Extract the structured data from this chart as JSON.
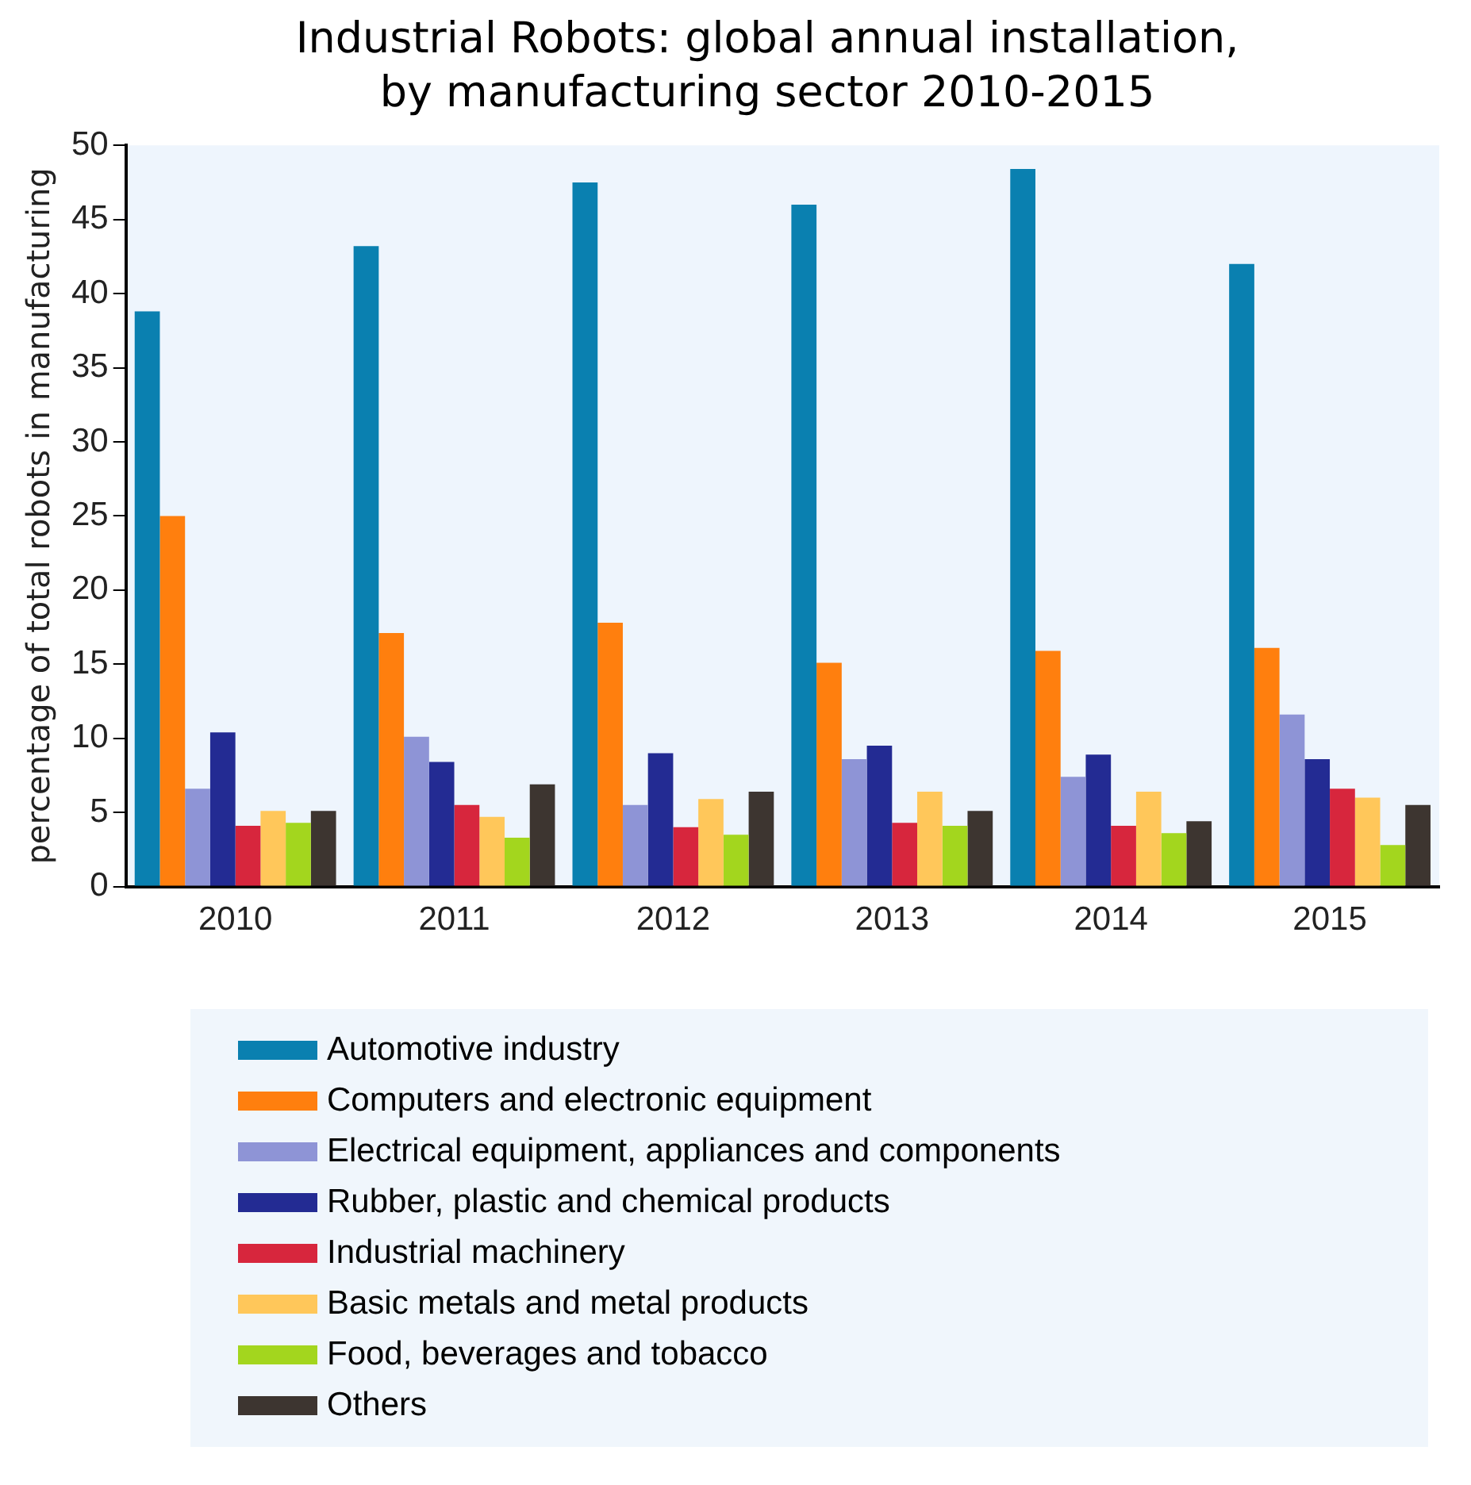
{
  "chart_data": {
    "type": "bar",
    "title": "Industrial Robots: global annual installation,\nby manufacturing sector 2010-2015",
    "ylabel": "percentage of total robots in manufacturing",
    "categories": [
      "2010",
      "2011",
      "2012",
      "2013",
      "2014",
      "2015"
    ],
    "series": [
      {
        "name": "Automotive industry",
        "color": "#0a80b0",
        "values": [
          38.8,
          43.2,
          47.5,
          46.0,
          48.4,
          42.0
        ]
      },
      {
        "name": "Computers and electronic equipment",
        "color": "#ff7f0e",
        "values": [
          25.0,
          17.1,
          17.8,
          15.1,
          15.9,
          16.1
        ]
      },
      {
        "name": "Electrical equipment, appliances and components",
        "color": "#8e94d6",
        "values": [
          6.6,
          10.1,
          5.5,
          8.6,
          7.4,
          11.6
        ]
      },
      {
        "name": "Rubber, plastic and chemical products",
        "color": "#232b93",
        "values": [
          10.4,
          8.4,
          9.0,
          9.5,
          8.9,
          8.6
        ]
      },
      {
        "name": "Industrial machinery",
        "color": "#d7263d",
        "values": [
          4.1,
          5.5,
          4.0,
          4.3,
          4.1,
          6.6
        ]
      },
      {
        "name": "Basic metals and metal products",
        "color": "#ffc75a",
        "values": [
          5.1,
          4.7,
          5.9,
          6.4,
          6.4,
          6.0
        ]
      },
      {
        "name": "Food, beverages and tobacco",
        "color": "#a3d61e",
        "values": [
          4.3,
          3.3,
          3.5,
          4.1,
          3.6,
          2.8
        ]
      },
      {
        "name": "Others",
        "color": "#3d3530",
        "values": [
          5.1,
          6.9,
          6.4,
          5.1,
          4.4,
          5.5
        ]
      }
    ],
    "ylim": [
      0,
      50
    ],
    "yticks": [
      0,
      5,
      10,
      15,
      20,
      25,
      30,
      35,
      40,
      45,
      50
    ],
    "grid": false,
    "legend": "bottom"
  }
}
